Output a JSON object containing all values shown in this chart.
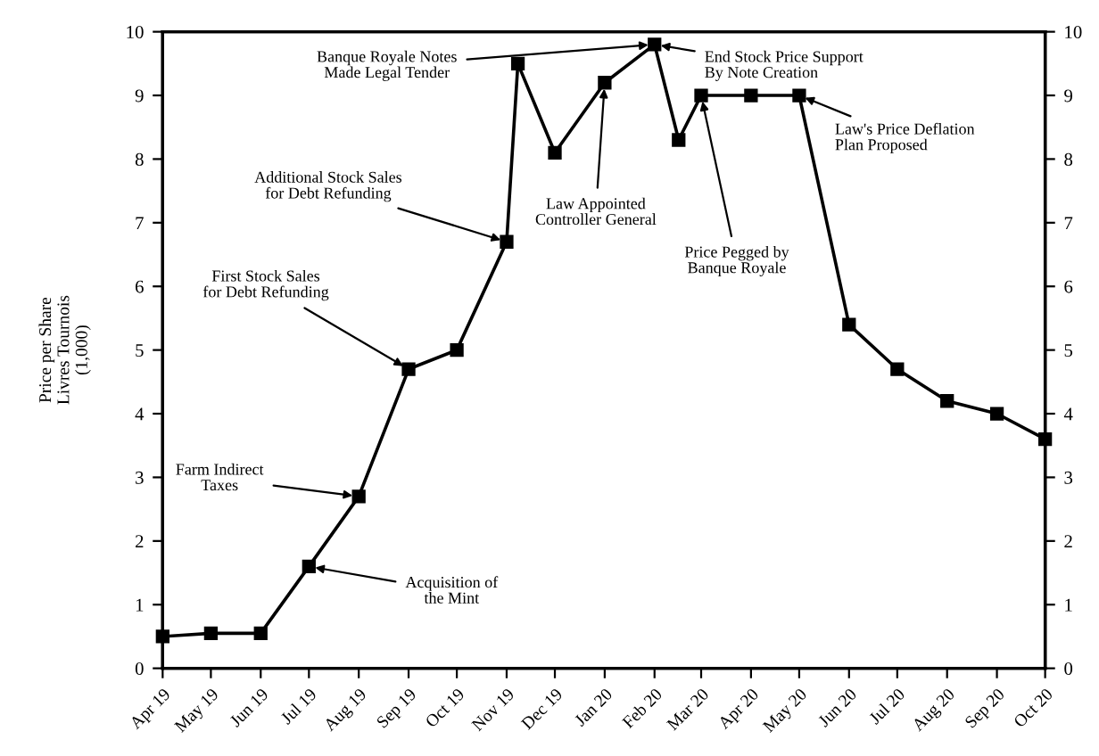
{
  "chart_data": {
    "type": "line",
    "ylabel": "Price per Share\nLivres Tournois\n(1,000)",
    "x": [
      "1719-04-01",
      "1719-05-01",
      "1719-06-01",
      "1719-07-01",
      "1719-08-01",
      "1719-09-01",
      "1719-10-01",
      "1719-11-01",
      "1719-11-08",
      "1719-12-01",
      "1720-01-01",
      "1720-02-01",
      "1720-02-16",
      "1720-03-01",
      "1720-04-01",
      "1720-05-01",
      "1720-06-01",
      "1720-07-01",
      "1720-08-01",
      "1720-09-01",
      "1720-10-01"
    ],
    "series": [
      {
        "color": "#000000",
        "values": [
          0.5,
          0.55,
          0.55,
          1.6,
          2.7,
          4.7,
          5.0,
          6.7,
          9.5,
          8.1,
          9.2,
          9.8,
          8.3,
          9.0,
          9.0,
          9.0,
          5.4,
          4.7,
          4.2,
          4.0,
          3.6
        ]
      }
    ],
    "marker": "square",
    "line_style": "solid",
    "grid": false,
    "legend": false,
    "xlim": [
      "1719-04-01",
      "1720-10-01"
    ],
    "xticks": [
      {
        "value": "1719-04-01",
        "label": "Apr 19"
      },
      {
        "value": "1719-05-01",
        "label": "May 19"
      },
      {
        "value": "1719-06-01",
        "label": "Jun 19"
      },
      {
        "value": "1719-07-01",
        "label": "Jul 19"
      },
      {
        "value": "1719-08-01",
        "label": "Aug 19"
      },
      {
        "value": "1719-09-01",
        "label": "Sep 19"
      },
      {
        "value": "1719-10-01",
        "label": "Oct 19"
      },
      {
        "value": "1719-11-01",
        "label": "Nov 19"
      },
      {
        "value": "1719-12-01",
        "label": "Dec 19"
      },
      {
        "value": "1720-01-01",
        "label": "Jan 20"
      },
      {
        "value": "1720-02-01",
        "label": "Feb 20"
      },
      {
        "value": "1720-03-01",
        "label": "Mar 20"
      },
      {
        "value": "1720-04-01",
        "label": "Apr 20"
      },
      {
        "value": "1720-05-01",
        "label": "May 20"
      },
      {
        "value": "1720-06-01",
        "label": "Jun 20"
      },
      {
        "value": "1720-07-01",
        "label": "Jul 20"
      },
      {
        "value": "1720-08-01",
        "label": "Aug 20"
      },
      {
        "value": "1720-09-01",
        "label": "Sep 20"
      },
      {
        "value": "1720-10-01",
        "label": "Oct 20"
      }
    ],
    "ylim": [
      0,
      10
    ],
    "yticks": [
      0,
      1,
      2,
      3,
      4,
      5,
      6,
      7,
      8,
      9,
      10
    ],
    "y2lim": [
      0,
      10
    ],
    "y2ticks": [
      0,
      1,
      2,
      3,
      4,
      5,
      6,
      7,
      8,
      9,
      10
    ],
    "annotations": [
      {
        "text": "Farm Indirect\nTaxes",
        "x": "1719-08-01",
        "y": 2.7
      },
      {
        "text": "Acquisition of\nthe Mint",
        "x": "1719-07-01",
        "y": 1.6
      },
      {
        "text": "First Stock Sales\nfor Debt Refunding",
        "x": "1719-09-01",
        "y": 4.7
      },
      {
        "text": "Additional Stock Sales\nfor Debt Refunding",
        "x": "1719-11-01",
        "y": 6.7
      },
      {
        "text": "Banque Royale Notes\nMade Legal Tender",
        "x": "1720-02-01",
        "y": 9.8
      },
      {
        "text": "Law Appointed\nController General",
        "x": "1720-01-01",
        "y": 9.2
      },
      {
        "text": "End Stock Price Support\nBy Note Creation",
        "x": "1720-02-01",
        "y": 9.8
      },
      {
        "text": "Price Pegged by\nBanque Royale",
        "x": "1720-03-01",
        "y": 9.0
      },
      {
        "text": "Law's Price Deflation\nPlan Proposed",
        "x": "1720-05-01",
        "y": 9.0
      }
    ]
  }
}
